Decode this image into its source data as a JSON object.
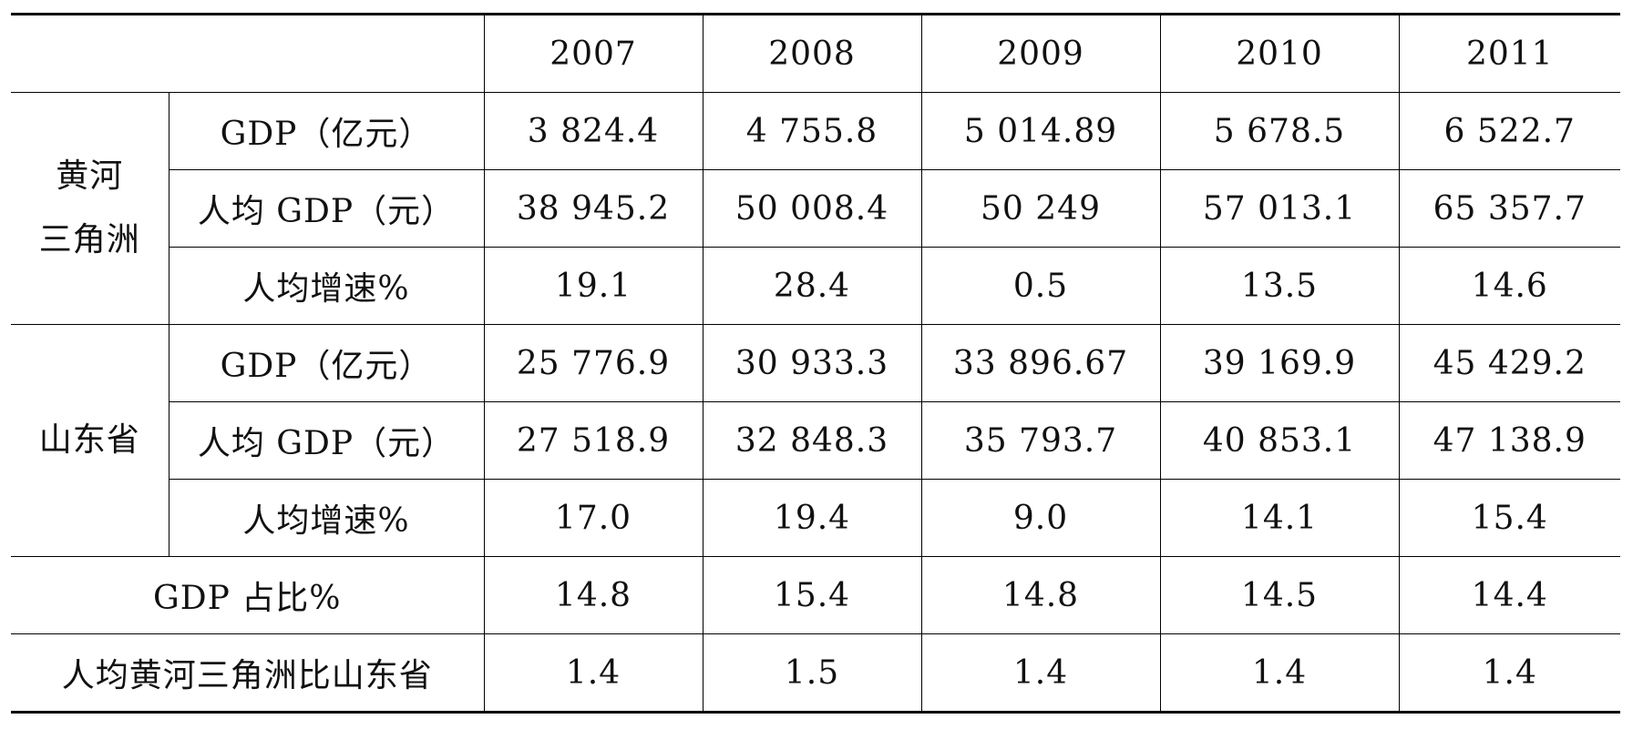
{
  "header": {
    "years": [
      "2007",
      "2008",
      "2009",
      "2010",
      "2011"
    ]
  },
  "groups": [
    {
      "label_lines": [
        "黄河",
        "三角洲"
      ],
      "rows": [
        {
          "label": "GDP（亿元）",
          "values": [
            "3 824.4",
            "4 755.8",
            "5 014.89",
            "5 678.5",
            "6 522.7"
          ]
        },
        {
          "label": "人均 GDP（元）",
          "values": [
            "38 945.2",
            "50 008.4",
            "50 249",
            "57 013.1",
            "65 357.7"
          ]
        },
        {
          "label": "人均增速%",
          "values": [
            "19.1",
            "28.4",
            "0.5",
            "13.5",
            "14.6"
          ]
        }
      ]
    },
    {
      "label_lines": [
        "山东省"
      ],
      "rows": [
        {
          "label": "GDP（亿元）",
          "values": [
            "25 776.9",
            "30 933.3",
            "33 896.67",
            "39 169.9",
            "45 429.2"
          ]
        },
        {
          "label": "人均 GDP（元）",
          "values": [
            "27 518.9",
            "32 848.3",
            "35 793.7",
            "40 853.1",
            "47 138.9"
          ]
        },
        {
          "label": "人均增速%",
          "values": [
            "17.0",
            "19.4",
            "9.0",
            "14.1",
            "15.4"
          ]
        }
      ]
    }
  ],
  "summary_rows": [
    {
      "label": "GDP 占比%",
      "values": [
        "14.8",
        "15.4",
        "14.8",
        "14.5",
        "14.4"
      ]
    },
    {
      "label": "人均黄河三角洲比山东省",
      "values": [
        "1.4",
        "1.5",
        "1.4",
        "1.4",
        "1.4"
      ]
    }
  ]
}
